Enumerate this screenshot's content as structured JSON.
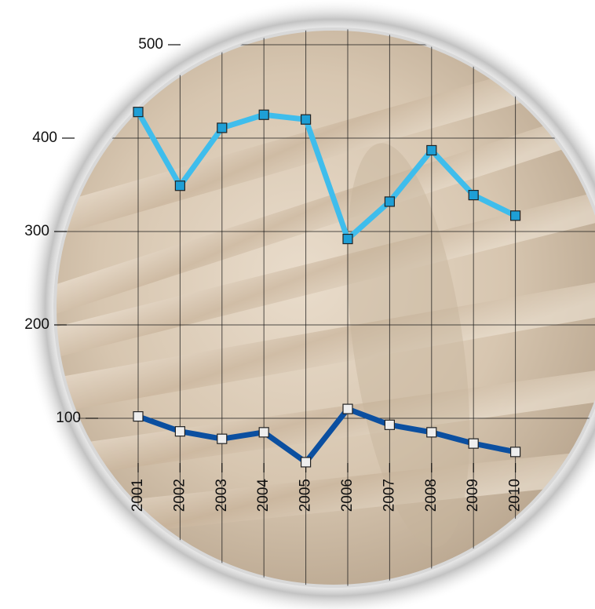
{
  "chart_data": {
    "type": "line",
    "categories": [
      "2001",
      "2002",
      "2003",
      "2004",
      "2005",
      "2006",
      "2007",
      "2008",
      "2009",
      "2010"
    ],
    "series": [
      {
        "color": "#3fbdec",
        "values": [
          428,
          349,
          411,
          425,
          420,
          292,
          332,
          387,
          339,
          317
        ]
      },
      {
        "color": "#0b4fa0",
        "values": [
          102,
          86,
          78,
          85,
          53,
          110,
          93,
          85,
          73,
          64
        ]
      }
    ],
    "ylim": [
      0,
      500
    ],
    "yticks": [
      100,
      200,
      300,
      400,
      500
    ],
    "grid": true
  }
}
